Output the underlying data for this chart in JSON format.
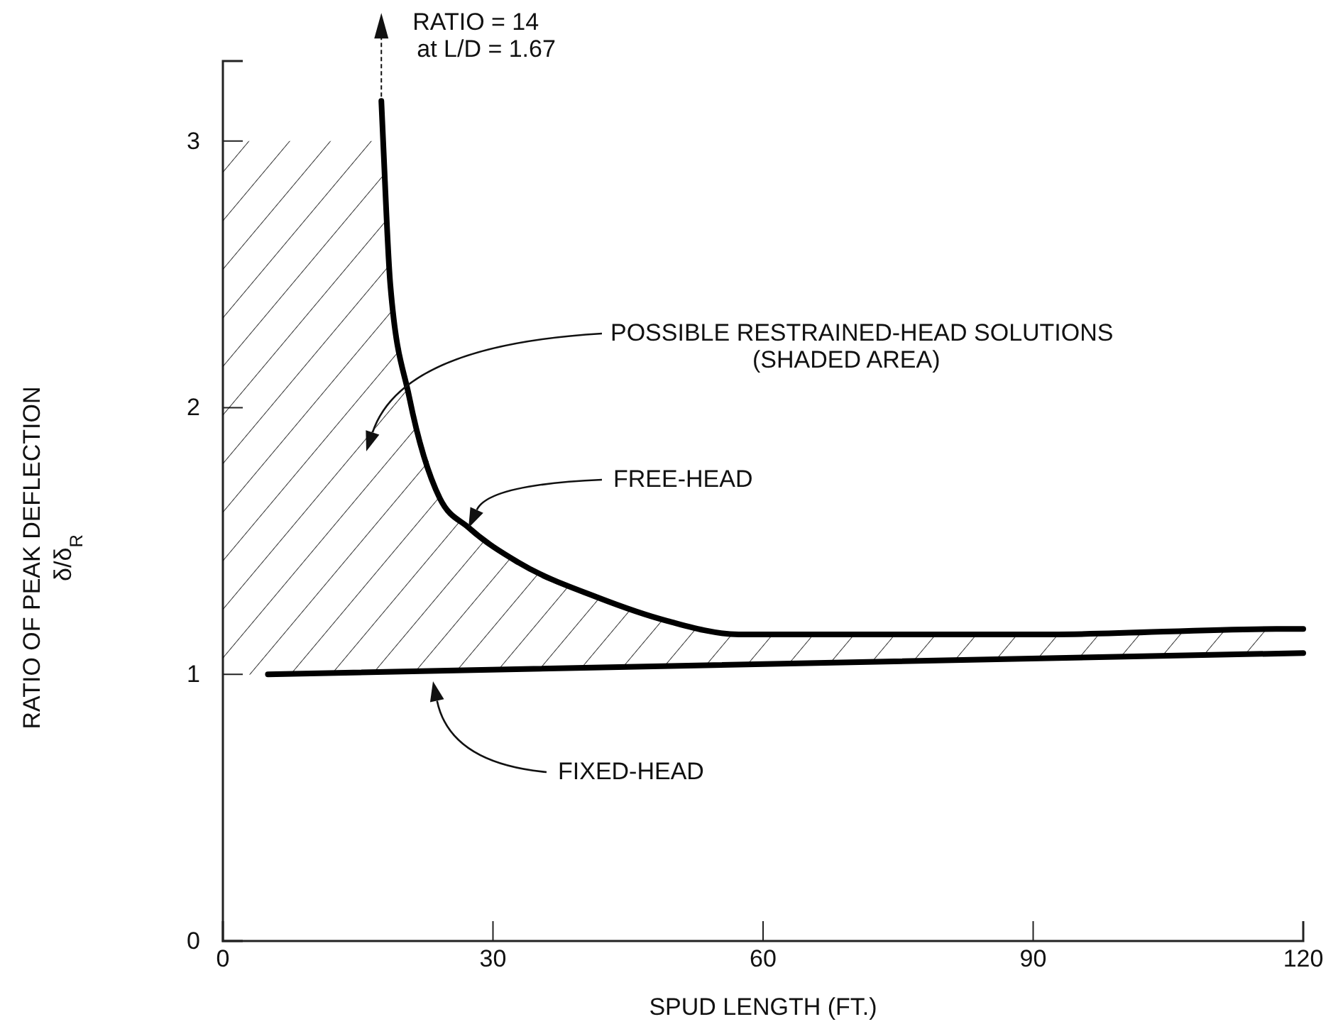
{
  "chart_data": {
    "type": "line",
    "xlabel": "SPUD LENGTH (FT.)",
    "ylabel": "RATIO OF PEAK DEFLECTION\nδ/δ$_{R}$",
    "xlim": [
      0,
      120
    ],
    "ylim": [
      0,
      3.3
    ],
    "xticks": [
      0,
      30,
      60,
      90,
      120
    ],
    "yticks": [
      0,
      1,
      2,
      3
    ],
    "grid": false,
    "marker": "none",
    "line_style": "solid",
    "series": [
      {
        "type": "area",
        "color": "#000000",
        "x": [
          0,
          17.8,
          18.6,
          20.7,
          24.1,
          27.3,
          32.8,
          41.5,
          49.4,
          57.3,
          68.3,
          92,
          117
        ],
        "values": [
          3,
          3,
          2.46,
          2.04,
          1.66,
          1.55,
          1.42,
          1.29,
          1.2,
          1.15,
          1.15,
          1.15,
          1.17
        ]
      },
      {
        "color": "#000000",
        "x": [
          17.6,
          17.8,
          18.6,
          20.7,
          24.1,
          27.3,
          32.8,
          41.5,
          49.4,
          57.3,
          68.3,
          92,
          117,
          120
        ],
        "values": [
          3.15,
          3,
          2.46,
          2.04,
          1.66,
          1.55,
          1.42,
          1.29,
          1.2,
          1.15,
          1.15,
          1.15,
          1.17,
          1.17
        ]
      },
      {
        "color": "#000000",
        "x": [
          5,
          120
        ],
        "values": [
          1,
          1.08
        ]
      }
    ],
    "annotations": [
      {
        "text": "RATIO = 14\nat L/D = 1.67",
        "x": 17.6,
        "y": 3.15
      },
      "POSSIBLE RESTRAINED-HEAD SOLUTIONS\n(SHADED AREA)",
      "FREE-HEAD",
      "FIXED-HEAD"
    ]
  }
}
